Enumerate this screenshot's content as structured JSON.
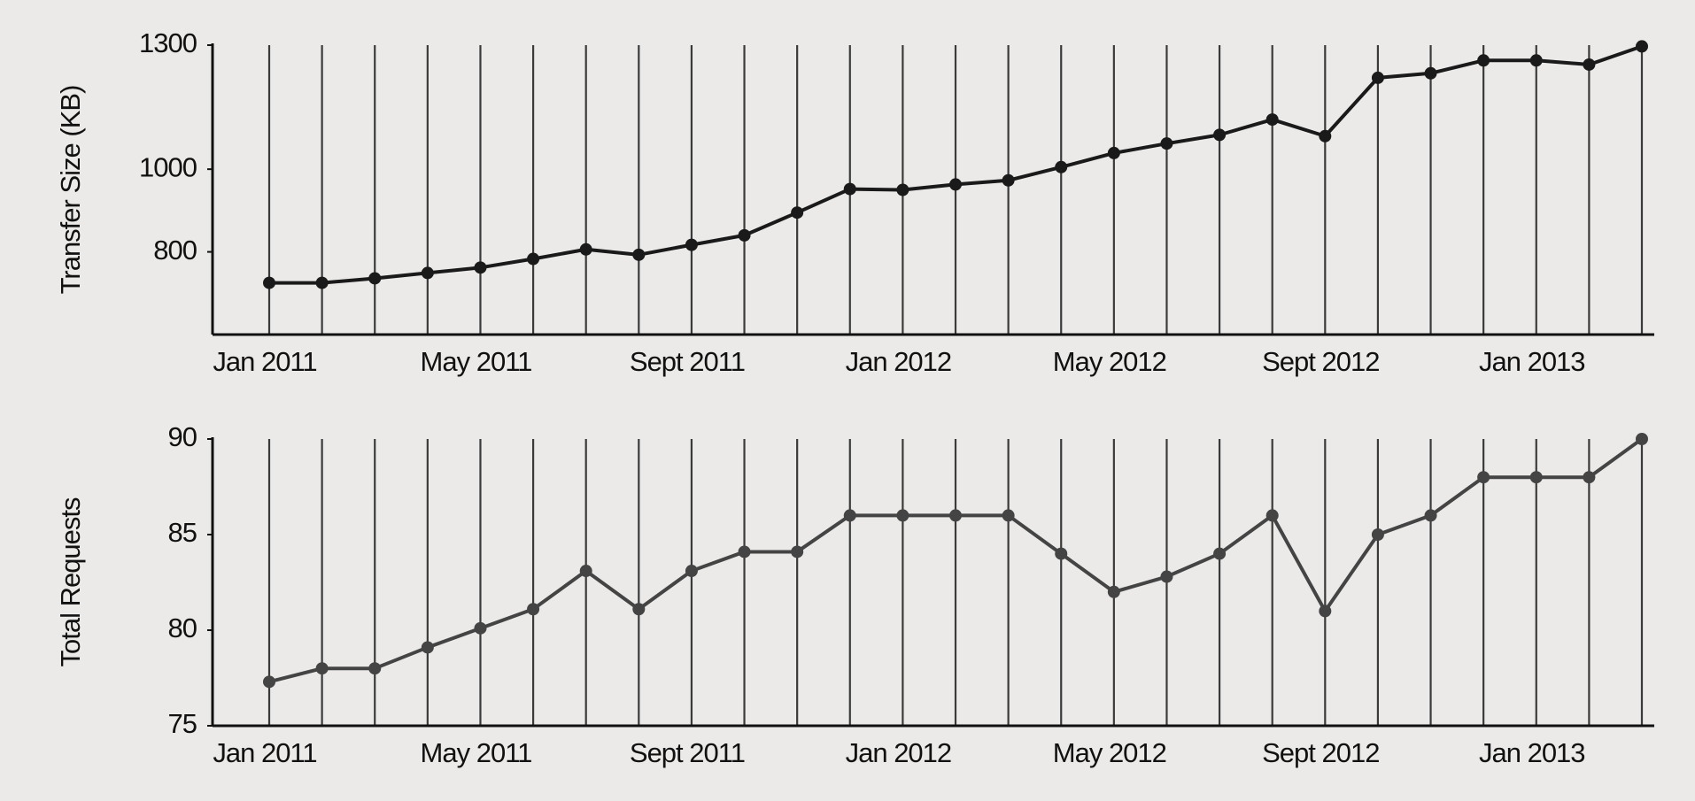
{
  "chart_data": [
    {
      "type": "line",
      "ylabel": "Transfer Size (KB)",
      "categories": [
        "Jan 2011",
        null,
        null,
        null,
        "May 2011",
        null,
        null,
        null,
        "Sept 2011",
        null,
        null,
        null,
        "Jan 2012",
        null,
        null,
        null,
        "May 2012",
        null,
        null,
        null,
        "Sept 2012",
        null,
        null,
        null,
        "Jan 2013",
        null,
        null
      ],
      "values": [
        725,
        725,
        736,
        749,
        762,
        783,
        806,
        793,
        817,
        840,
        895,
        952,
        950,
        963,
        973,
        1005,
        1039,
        1062,
        1083,
        1120,
        1080,
        1221,
        1232,
        1263,
        1263,
        1253,
        1297
      ],
      "color": "#1a1a1a",
      "ylim": [
        600,
        1300
      ],
      "yticks": [
        800,
        1000,
        1300
      ],
      "xgrid": true
    },
    {
      "type": "line",
      "ylabel": "Total Requests",
      "categories": [
        "Jan 2011",
        null,
        null,
        null,
        "May 2011",
        null,
        null,
        null,
        "Sept 2011",
        null,
        null,
        null,
        "Jan 2012",
        null,
        null,
        null,
        "May 2012",
        null,
        null,
        null,
        "Sept 2012",
        null,
        null,
        null,
        "Jan 2013",
        null,
        null
      ],
      "values": [
        77.3,
        78,
        78,
        79.1,
        80.1,
        81.1,
        83.1,
        81.1,
        83.1,
        84.1,
        84.1,
        86,
        86,
        86,
        86,
        84,
        82,
        82.8,
        84,
        86,
        81,
        85,
        86,
        88,
        88,
        88,
        90
      ],
      "color": "#444444",
      "ylim": [
        75,
        90
      ],
      "yticks": [
        75,
        80,
        85,
        90
      ],
      "xgrid": true
    }
  ]
}
